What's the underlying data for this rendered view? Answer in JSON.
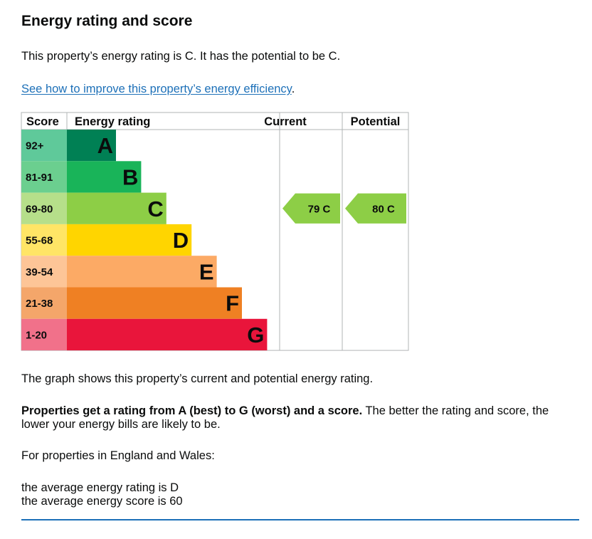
{
  "heading": "Energy rating and score",
  "summary": "This property’s energy rating is C. It has the potential to be C.",
  "improve_link": {
    "text": "See how to improve this property’s energy efficiency",
    "suffix": "."
  },
  "chart_data": {
    "type": "bar",
    "column_headers": {
      "score": "Score",
      "rating": "Energy rating",
      "current": "Current",
      "potential": "Potential"
    },
    "bands": [
      {
        "range": "92+",
        "letter": "A",
        "min": 92,
        "max": 100,
        "color": "#008054",
        "range_color": "#5fc99a"
      },
      {
        "range": "81-91",
        "letter": "B",
        "min": 81,
        "max": 91,
        "color": "#19b459",
        "range_color": "#6bcf8f"
      },
      {
        "range": "69-80",
        "letter": "C",
        "min": 69,
        "max": 80,
        "color": "#8dce46",
        "range_color": "#b6df8a"
      },
      {
        "range": "55-68",
        "letter": "D",
        "min": 55,
        "max": 68,
        "color": "#ffd500",
        "range_color": "#ffe566"
      },
      {
        "range": "39-54",
        "letter": "E",
        "min": 39,
        "max": 54,
        "color": "#fcaa65",
        "range_color": "#fdc597"
      },
      {
        "range": "21-38",
        "letter": "F",
        "min": 21,
        "max": 38,
        "color": "#ef8023",
        "range_color": "#f4a66a"
      },
      {
        "range": "1-20",
        "letter": "G",
        "min": 1,
        "max": 20,
        "color": "#e9153b",
        "range_color": "#f1718a"
      }
    ],
    "current": {
      "score": 79,
      "letter": "C",
      "label": "79  C"
    },
    "potential": {
      "score": 80,
      "letter": "C",
      "label": "80  C"
    },
    "arrow_color": "#8dce46"
  },
  "graph_caption": "The graph shows this property’s current and potential energy rating.",
  "ratings_para": {
    "bold": "Properties get a rating from A (best) to G (worst) and a score.",
    "rest": " The better the rating and score, the lower your energy bills are likely to be."
  },
  "england_wales": "For properties in England and Wales:",
  "average_rating": "the average energy rating is D",
  "average_score": "the average energy score is 60"
}
